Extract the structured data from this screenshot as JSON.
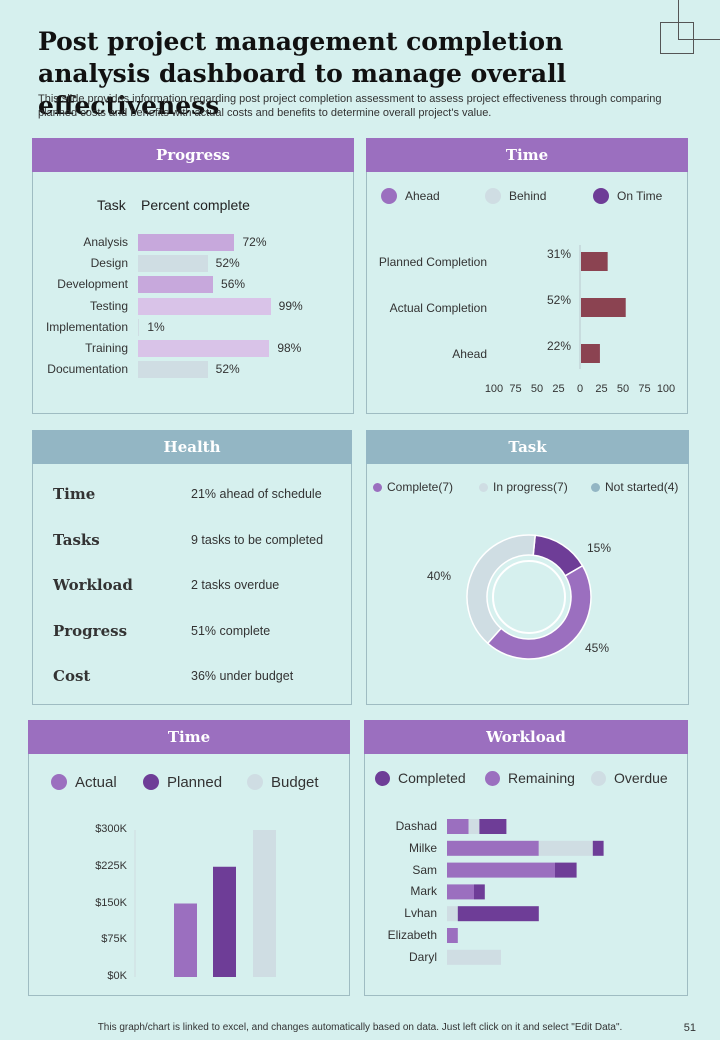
{
  "title": "Post project management completion analysis dashboard to manage overall effectiveness",
  "subtitle": "This slide provides information regarding post project completion assessment to assess project effectiveness through comparing planned costs and benefits with actual costs and benefits  to determine overall project's value.",
  "footer": "This graph/chart is linked to excel, and changes automatically based on data. Just left click on it and select \"Edit Data\".",
  "page_number": "51",
  "panels": {
    "progress": {
      "title": "Progress",
      "col_task": "Task",
      "col_percent": "Percent complete"
    },
    "time_top": {
      "title": "Time"
    },
    "health": {
      "title": "Health"
    },
    "task": {
      "title": "Task"
    },
    "time_bottom": {
      "title": "Time"
    },
    "workload": {
      "title": "Workload"
    }
  },
  "health": {
    "rows": [
      {
        "label": "Time",
        "value": "21% ahead of schedule"
      },
      {
        "label": "Tasks",
        "value": "9 tasks to be completed"
      },
      {
        "label": "Workload",
        "value": "2 tasks overdue"
      },
      {
        "label": "Progress",
        "value": "51% complete"
      },
      {
        "label": "Cost",
        "value": "36% under  budget"
      }
    ]
  },
  "colors": {
    "purple": "#9b6fbf",
    "light_purple": "#c7a8dc",
    "lavender": "#d9c3e8",
    "pale_blue": "#cfdde3",
    "dark_purple": "#6e3d97",
    "maroon": "#8b4351",
    "steel_blue": "#93b6c4"
  },
  "chart_data": [
    {
      "id": "progress",
      "type": "bar",
      "orientation": "horizontal",
      "categories": [
        "Analysis",
        "Design",
        "Development",
        "Testing",
        "Implementation",
        "Training",
        "Documentation"
      ],
      "values": [
        72,
        52,
        56,
        99,
        1,
        98,
        52
      ],
      "labels": [
        "72%",
        "52%",
        "56%",
        "99%",
        "1%",
        "98%",
        "52%"
      ],
      "xlim": [
        0,
        100
      ]
    },
    {
      "id": "time_top",
      "type": "bar",
      "orientation": "horizontal",
      "legend": [
        "Ahead",
        "Behind",
        "On Time"
      ],
      "categories": [
        "Planned Completion",
        "Actual Completion",
        "Ahead"
      ],
      "values": [
        31,
        52,
        22
      ],
      "labels": [
        "31%",
        "52%",
        "22%"
      ],
      "xlim": [
        -100,
        100
      ],
      "xticks": [
        "100",
        "75",
        "50",
        "25",
        "0",
        "25",
        "50",
        "75",
        "100"
      ]
    },
    {
      "id": "task",
      "type": "pie",
      "donut": true,
      "legend": [
        "Complete(7)",
        "In progress(7)",
        "Not started(4)"
      ],
      "slices": [
        {
          "name": "Complete",
          "value": 15,
          "label": "15%"
        },
        {
          "name": "In progress",
          "value": 45,
          "label": "45%"
        },
        {
          "name": "Not started",
          "value": 40,
          "label": "40%"
        }
      ]
    },
    {
      "id": "time_bottom",
      "type": "bar",
      "legend": [
        "Actual",
        "Planned",
        "Budget"
      ],
      "categories": [
        "Actual",
        "Planned",
        "Budget"
      ],
      "values": [
        150000,
        225000,
        300000
      ],
      "ylim": [
        0,
        300000
      ],
      "yticks": [
        "$0K",
        "$75K",
        "$150K",
        "$225K",
        "$300K"
      ]
    },
    {
      "id": "workload",
      "type": "bar",
      "orientation": "horizontal",
      "stacked": true,
      "legend": [
        "Completed",
        "Remaining",
        "Overdue"
      ],
      "categories": [
        "Dashad",
        "Milke",
        "Sam",
        "Mark",
        "Lvhan",
        "Elizabeth",
        "Daryl"
      ],
      "series": [
        {
          "name": "Remaining",
          "values": [
            2,
            8.5,
            10,
            2.5,
            0,
            1,
            0
          ]
        },
        {
          "name": "Overdue",
          "values": [
            1,
            5,
            0,
            0,
            1,
            0,
            5
          ]
        },
        {
          "name": "Completed",
          "values": [
            2.5,
            1,
            2,
            1,
            7.5,
            0,
            0
          ]
        }
      ],
      "xlim": [
        0,
        16
      ]
    }
  ]
}
